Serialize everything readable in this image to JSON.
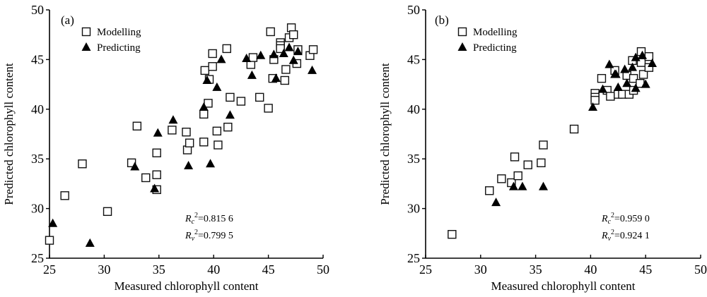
{
  "chart_data": [
    {
      "type": "scatter",
      "panel_label": "(a)",
      "title": "",
      "xlabel": "Measured chlorophyll content",
      "ylabel": "Predicted chlorophyll content",
      "xlim": [
        25,
        50
      ],
      "ylim": [
        25,
        50
      ],
      "xticks": [
        "25",
        "30",
        "35",
        "40",
        "45",
        "50"
      ],
      "yticks": [
        "25",
        "30",
        "35",
        "40",
        "45",
        "50"
      ],
      "grid": false,
      "legend": {
        "placement": "top-left",
        "entries": [
          "Modelling",
          "Predicting"
        ]
      },
      "annotations": {
        "rc": {
          "symbol": "R",
          "sub": "c",
          "sup": "2",
          "value": "=0.815 6"
        },
        "rv": {
          "symbol": "R",
          "sub": "v",
          "sup": "2",
          "value": "=0.799 5"
        }
      },
      "series": [
        {
          "name": "Modelling",
          "marker": "square-open",
          "points": [
            [
              25.0,
              26.8
            ],
            [
              26.4,
              31.3
            ],
            [
              28.0,
              34.5
            ],
            [
              30.3,
              29.7
            ],
            [
              32.5,
              34.6
            ],
            [
              33.0,
              38.3
            ],
            [
              33.8,
              33.1
            ],
            [
              34.8,
              35.6
            ],
            [
              34.8,
              33.4
            ],
            [
              34.8,
              31.9
            ],
            [
              36.2,
              37.9
            ],
            [
              37.5,
              37.7
            ],
            [
              37.6,
              35.9
            ],
            [
              37.8,
              36.6
            ],
            [
              39.1,
              36.7
            ],
            [
              39.1,
              39.5
            ],
            [
              39.5,
              40.6
            ],
            [
              39.2,
              43.9
            ],
            [
              39.6,
              43.0
            ],
            [
              39.9,
              44.3
            ],
            [
              39.9,
              45.6
            ],
            [
              40.3,
              37.8
            ],
            [
              40.4,
              36.4
            ],
            [
              41.2,
              46.1
            ],
            [
              41.3,
              38.2
            ],
            [
              41.5,
              41.2
            ],
            [
              42.5,
              40.8
            ],
            [
              43.4,
              44.5
            ],
            [
              43.6,
              45.2
            ],
            [
              44.2,
              41.2
            ],
            [
              45.0,
              40.1
            ],
            [
              45.2,
              47.8
            ],
            [
              45.4,
              43.1
            ],
            [
              45.5,
              45.0
            ],
            [
              46.1,
              46.7
            ],
            [
              46.1,
              46.4
            ],
            [
              46.1,
              46.1
            ],
            [
              46.5,
              42.9
            ],
            [
              46.6,
              44.0
            ],
            [
              46.9,
              47.2
            ],
            [
              47.1,
              48.2
            ],
            [
              47.3,
              47.5
            ],
            [
              47.6,
              44.6
            ],
            [
              47.7,
              46.0
            ],
            [
              48.8,
              45.4
            ],
            [
              49.1,
              46.0
            ]
          ]
        },
        {
          "name": "Predicting",
          "marker": "triangle-filled",
          "points": [
            [
              25.3,
              28.5
            ],
            [
              28.7,
              26.5
            ],
            [
              32.8,
              34.2
            ],
            [
              34.6,
              32.0
            ],
            [
              34.9,
              37.6
            ],
            [
              36.3,
              38.9
            ],
            [
              37.7,
              34.3
            ],
            [
              39.1,
              40.2
            ],
            [
              39.4,
              42.9
            ],
            [
              39.7,
              34.5
            ],
            [
              40.3,
              42.2
            ],
            [
              40.7,
              45.0
            ],
            [
              41.5,
              39.4
            ],
            [
              43.0,
              45.1
            ],
            [
              43.5,
              43.4
            ],
            [
              44.3,
              45.4
            ],
            [
              45.5,
              45.5
            ],
            [
              45.7,
              43.1
            ],
            [
              46.4,
              45.6
            ],
            [
              46.9,
              46.2
            ],
            [
              47.3,
              44.9
            ],
            [
              47.7,
              45.8
            ],
            [
              49.0,
              43.9
            ]
          ]
        }
      ]
    },
    {
      "type": "scatter",
      "panel_label": "(b)",
      "title": "",
      "xlabel": "Measured chlorophyll content",
      "ylabel": "Predicted chlorophyll content",
      "xlim": [
        25,
        50
      ],
      "ylim": [
        25,
        50
      ],
      "xticks": [
        "25",
        "30",
        "35",
        "40",
        "45",
        "50"
      ],
      "yticks": [
        "25",
        "30",
        "35",
        "40",
        "45",
        "50"
      ],
      "grid": false,
      "legend": {
        "placement": "top-left",
        "entries": [
          "Modelling",
          "Predicting"
        ]
      },
      "annotations": {
        "rc": {
          "symbol": "R",
          "sub": "c",
          "sup": "2",
          "value": "=0.959 0"
        },
        "rv": {
          "symbol": "R",
          "sub": "v",
          "sup": "2",
          "value": "=0.924 1"
        }
      },
      "series": [
        {
          "name": "Modelling",
          "marker": "square-open",
          "points": [
            [
              27.4,
              27.4
            ],
            [
              30.8,
              31.8
            ],
            [
              31.9,
              33.0
            ],
            [
              32.8,
              32.6
            ],
            [
              33.1,
              35.2
            ],
            [
              33.4,
              33.3
            ],
            [
              34.3,
              34.4
            ],
            [
              35.5,
              34.6
            ],
            [
              35.7,
              36.4
            ],
            [
              38.5,
              38.0
            ],
            [
              40.4,
              41.6
            ],
            [
              40.4,
              41.2
            ],
            [
              40.4,
              40.9
            ],
            [
              41.0,
              43.1
            ],
            [
              41.5,
              41.9
            ],
            [
              41.8,
              41.3
            ],
            [
              42.2,
              43.9
            ],
            [
              42.5,
              41.5
            ],
            [
              42.9,
              41.5
            ],
            [
              43.3,
              43.4
            ],
            [
              43.5,
              41.5
            ],
            [
              43.8,
              44.9
            ],
            [
              43.9,
              43.1
            ],
            [
              43.9,
              41.9
            ],
            [
              44.5,
              42.6
            ],
            [
              44.6,
              45.8
            ],
            [
              44.6,
              44.7
            ],
            [
              44.8,
              43.5
            ],
            [
              45.3,
              45.3
            ],
            [
              45.3,
              44.2
            ]
          ]
        },
        {
          "name": "Predicting",
          "marker": "triangle-filled",
          "points": [
            [
              31.4,
              30.6
            ],
            [
              33.0,
              32.2
            ],
            [
              33.8,
              32.2
            ],
            [
              35.7,
              32.2
            ],
            [
              40.2,
              40.2
            ],
            [
              41.1,
              42.0
            ],
            [
              41.7,
              44.5
            ],
            [
              42.2,
              43.5
            ],
            [
              42.3,
              43.5
            ],
            [
              42.5,
              42.2
            ],
            [
              43.1,
              44.0
            ],
            [
              43.3,
              42.6
            ],
            [
              43.8,
              44.2
            ],
            [
              44.1,
              45.2
            ],
            [
              44.1,
              42.1
            ],
            [
              44.7,
              45.4
            ],
            [
              45.0,
              42.5
            ],
            [
              45.6,
              44.6
            ]
          ]
        }
      ]
    }
  ]
}
